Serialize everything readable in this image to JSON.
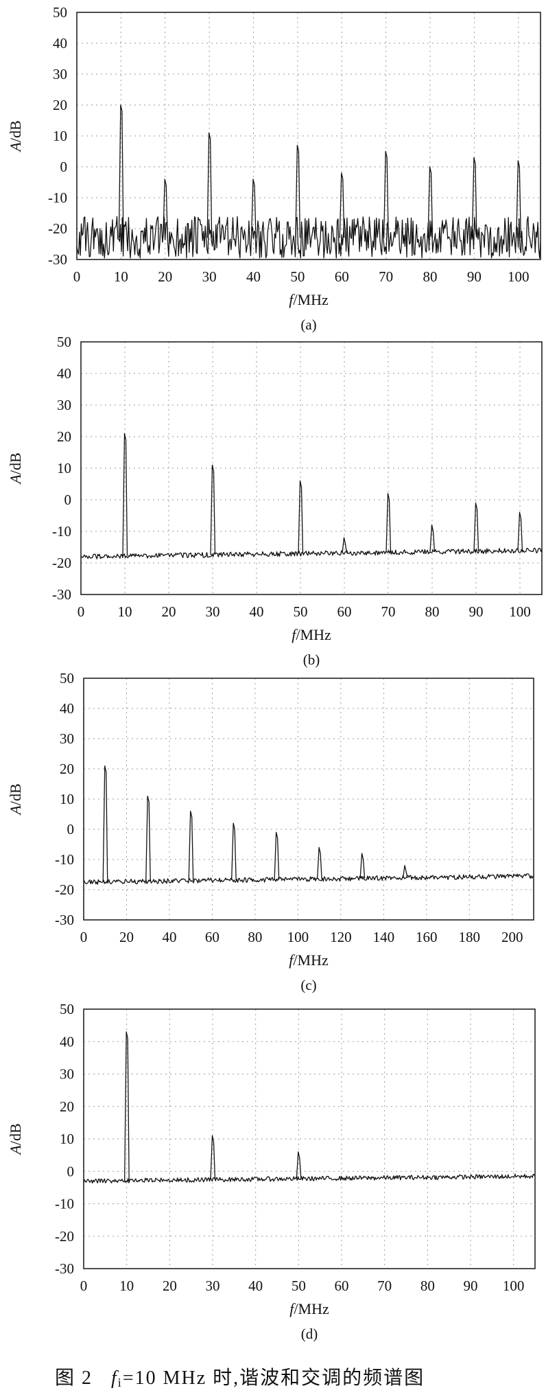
{
  "caption": {
    "prefix": "图 2",
    "fi_symbol": "f",
    "fi_sub": "i",
    "text": "=10 MHz 时,谐波和交调的频谱图"
  },
  "chart_data": [
    {
      "type": "line",
      "panel_label": "(a)",
      "xlabel_var": "f",
      "xlabel_unit": "/MHz",
      "ylabel_var": "A",
      "ylabel_unit": "/dB",
      "xlim": [
        0,
        105
      ],
      "ylim": [
        -30,
        50
      ],
      "xticks": [
        0,
        10,
        20,
        30,
        40,
        50,
        60,
        70,
        80,
        90,
        100
      ],
      "yticks": [
        -30,
        -20,
        -10,
        0,
        10,
        20,
        30,
        40,
        50
      ],
      "grid": true,
      "noise_floor": -23,
      "noise_spread": 7,
      "peaks": [
        {
          "x": 10,
          "y": 20
        },
        {
          "x": 20,
          "y": -4
        },
        {
          "x": 30,
          "y": 11
        },
        {
          "x": 40,
          "y": -4
        },
        {
          "x": 50,
          "y": 7
        },
        {
          "x": 60,
          "y": -2
        },
        {
          "x": 70,
          "y": 5
        },
        {
          "x": 80,
          "y": 0
        },
        {
          "x": 90,
          "y": 3
        },
        {
          "x": 100,
          "y": 2
        }
      ]
    },
    {
      "type": "line",
      "panel_label": "(b)",
      "xlabel_var": "f",
      "xlabel_unit": "/MHz",
      "ylabel_var": "A",
      "ylabel_unit": "/dB",
      "xlim": [
        0,
        105
      ],
      "ylim": [
        -30,
        50
      ],
      "xticks": [
        0,
        10,
        20,
        30,
        40,
        50,
        60,
        70,
        80,
        90,
        100
      ],
      "yticks": [
        -30,
        -20,
        -10,
        0,
        10,
        20,
        30,
        40,
        50
      ],
      "grid": true,
      "noise_floor": -18,
      "noise_end": -16,
      "noise_spread": 0.8,
      "peaks": [
        {
          "x": 10,
          "y": 21
        },
        {
          "x": 30,
          "y": 11
        },
        {
          "x": 50,
          "y": 6
        },
        {
          "x": 60,
          "y": -12
        },
        {
          "x": 70,
          "y": 2
        },
        {
          "x": 80,
          "y": -8
        },
        {
          "x": 90,
          "y": -1
        },
        {
          "x": 100,
          "y": -4
        }
      ]
    },
    {
      "type": "line",
      "panel_label": "(c)",
      "xlabel_var": "f",
      "xlabel_unit": "/MHz",
      "ylabel_var": "A",
      "ylabel_unit": "/dB",
      "xlim": [
        0,
        210
      ],
      "ylim": [
        -30,
        50
      ],
      "xticks": [
        0,
        20,
        40,
        60,
        80,
        100,
        120,
        140,
        160,
        180,
        200
      ],
      "yticks": [
        -30,
        -20,
        -10,
        0,
        10,
        20,
        30,
        40,
        50
      ],
      "grid": true,
      "noise_floor": -17.5,
      "noise_end": -15.5,
      "noise_spread": 0.8,
      "peaks": [
        {
          "x": 10,
          "y": 21
        },
        {
          "x": 30,
          "y": 11
        },
        {
          "x": 50,
          "y": 6
        },
        {
          "x": 70,
          "y": 2
        },
        {
          "x": 90,
          "y": -1
        },
        {
          "x": 110,
          "y": -6
        },
        {
          "x": 130,
          "y": -8
        },
        {
          "x": 150,
          "y": -12
        }
      ]
    },
    {
      "type": "line",
      "panel_label": "(d)",
      "xlabel_var": "f",
      "xlabel_unit": "/MHz",
      "ylabel_var": "A",
      "ylabel_unit": "/dB",
      "xlim": [
        0,
        105
      ],
      "ylim": [
        -30,
        50
      ],
      "xticks": [
        0,
        10,
        20,
        30,
        40,
        50,
        60,
        70,
        80,
        90,
        100
      ],
      "yticks": [
        -30,
        -20,
        -10,
        0,
        10,
        20,
        30,
        40,
        50
      ],
      "grid": true,
      "noise_floor": -3,
      "noise_end": -1.5,
      "noise_spread": 0.7,
      "peaks": [
        {
          "x": 10,
          "y": 43
        },
        {
          "x": 30,
          "y": 11
        },
        {
          "x": 50,
          "y": 6
        }
      ]
    }
  ]
}
